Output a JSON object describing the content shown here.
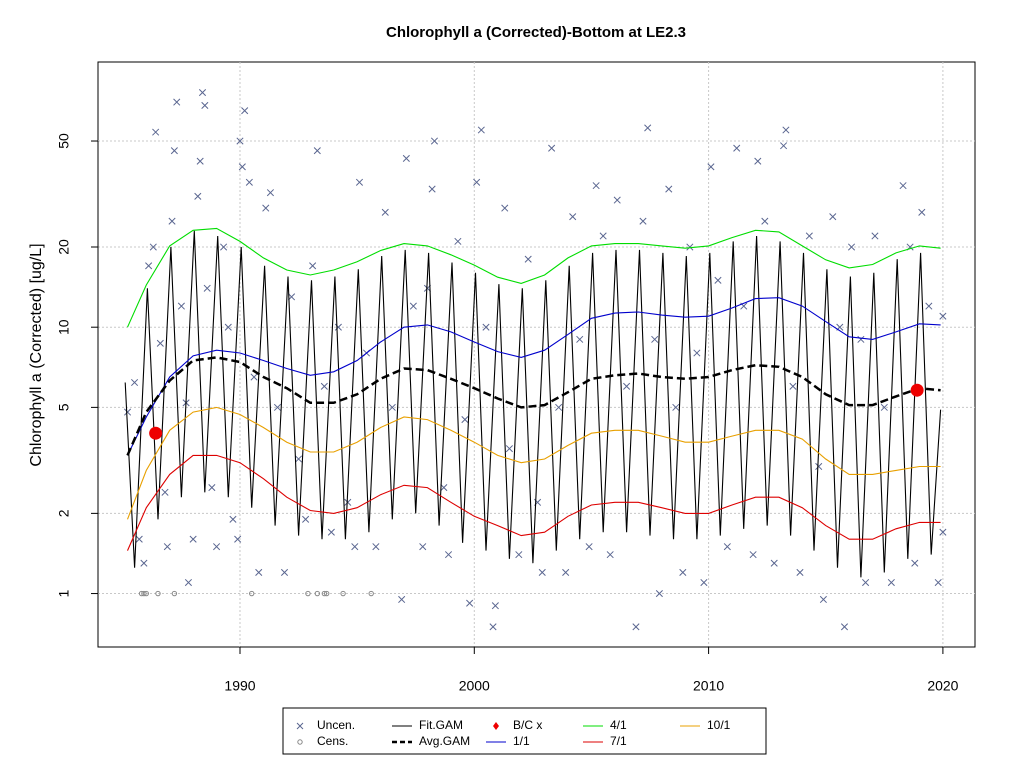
{
  "chart_data": {
    "type": "scatter-line",
    "title": "Chlorophyll a (Corrected)-Bottom at LE2.3",
    "y_label": "Chlorophyll a (Corrected) [ug/L]",
    "log_y": true,
    "grid": true,
    "xlim": [
      1983.94,
      2021.37
    ],
    "ylim": [
      0.63,
      99
    ],
    "xticks": [
      1990,
      2000,
      2010,
      2020
    ],
    "yticks": [
      1,
      2,
      5,
      10,
      20,
      50
    ],
    "legend": "bottom",
    "series": [
      {
        "name": "Uncen.",
        "color": "#5a6690",
        "marker": "x",
        "x": [
          1985.2,
          1985.5,
          1985.7,
          1985.9,
          1986.1,
          1986.3,
          1986.4,
          1986.6,
          1986.8,
          1986.9,
          1987.1,
          1987.2,
          1987.3,
          1987.5,
          1987.7,
          1987.8,
          1988.0,
          1988.2,
          1988.3,
          1988.4,
          1988.5,
          1988.6,
          1988.8,
          1989.0,
          1989.3,
          1989.5,
          1989.7,
          1989.9,
          1990.0,
          1990.1,
          1990.2,
          1990.4,
          1990.6,
          1990.8,
          1991.1,
          1991.3,
          1991.6,
          1991.9,
          1992.2,
          1992.5,
          1992.8,
          1993.1,
          1993.3,
          1993.6,
          1993.9,
          1994.2,
          1994.6,
          1994.9,
          1995.1,
          1995.4,
          1995.8,
          1996.2,
          1996.5,
          1996.9,
          1997.1,
          1997.4,
          1997.8,
          1998.0,
          1998.3,
          1998.2,
          1998.7,
          1998.9,
          1999.3,
          1999.6,
          1999.8,
          2000.1,
          2000.3,
          2000.5,
          2000.8,
          2000.9,
          2001.3,
          2001.5,
          2001.9,
          2002.3,
          2002.7,
          2002.9,
          2003.3,
          2003.6,
          2003.9,
          2004.2,
          2004.5,
          2004.9,
          2005.2,
          2005.5,
          2005.8,
          2006.1,
          2006.5,
          2006.9,
          2007.2,
          2007.4,
          2007.7,
          2007.9,
          2008.3,
          2008.6,
          2008.9,
          2009.2,
          2009.5,
          2009.8,
          2010.1,
          2010.4,
          2010.8,
          2011.2,
          2011.5,
          2011.9,
          2012.1,
          2012.4,
          2012.8,
          2013.2,
          2013.3,
          2013.6,
          2013.9,
          2014.3,
          2014.7,
          2014.9,
          2015.3,
          2015.6,
          2015.8,
          2016.1,
          2016.5,
          2016.7,
          2017.1,
          2017.5,
          2017.8,
          2018.3,
          2018.6,
          2018.8,
          2019.1,
          2019.4,
          2019.8,
          2020.0,
          2020.0
        ],
        "values": [
          4.8,
          6.2,
          1.6,
          1.3,
          17,
          20,
          54,
          8.7,
          2.4,
          1.5,
          25,
          46,
          70,
          12,
          5.2,
          1.1,
          1.6,
          31,
          42,
          76,
          68,
          14,
          2.5,
          1.5,
          20,
          10,
          1.9,
          1.6,
          50,
          40,
          65,
          35,
          6.5,
          1.2,
          28,
          32,
          5,
          1.2,
          13,
          3.2,
          1.9,
          17,
          46,
          6,
          1.7,
          10,
          2.2,
          1.5,
          35,
          8,
          1.5,
          27,
          5,
          0.95,
          43,
          12,
          1.5,
          14,
          50,
          33,
          2.5,
          1.4,
          21,
          4.5,
          0.92,
          35,
          55,
          10,
          0.75,
          0.9,
          28,
          3.5,
          1.4,
          18,
          2.2,
          1.2,
          47,
          5,
          1.2,
          26,
          9,
          1.5,
          34,
          22,
          1.4,
          30,
          6,
          0.75,
          25,
          56,
          9,
          1.0,
          33,
          5,
          1.2,
          20,
          8,
          1.1,
          40,
          15,
          1.5,
          47,
          12,
          1.4,
          42,
          25,
          1.3,
          48,
          55,
          6,
          1.2,
          22,
          3,
          0.95,
          26,
          10,
          0.75,
          20,
          9,
          1.1,
          22,
          5,
          1.1,
          34,
          20,
          1.3,
          27,
          12,
          1.1,
          11,
          1.7
        ]
      },
      {
        "name": "Cens.",
        "color": "#888888",
        "marker": "o",
        "x": [
          1985.8,
          1985.9,
          1986.0,
          1986.5,
          1987.2,
          1990.5,
          1992.9,
          1993.3,
          1993.6,
          1993.7,
          1994.4,
          1995.6
        ],
        "values": [
          1,
          1,
          1,
          1,
          1,
          1,
          1,
          1,
          1,
          1,
          1,
          1
        ]
      },
      {
        "name": "Fit.GAM",
        "color": "#000000",
        "marker": "line",
        "x": [
          1985.1,
          1985.5,
          1986.05,
          1986.5,
          1987.05,
          1987.5,
          1988.05,
          1988.5,
          1989.05,
          1989.5,
          1990.05,
          1990.5,
          1991.05,
          1991.5,
          1992.05,
          1992.5,
          1993.05,
          1993.5,
          1994.05,
          1994.5,
          1995.05,
          1995.5,
          1996.05,
          1996.5,
          1997.05,
          1997.5,
          1998.05,
          1998.5,
          1999.05,
          1999.5,
          2000.05,
          2000.5,
          2001.05,
          2001.5,
          2002.05,
          2002.5,
          2003.05,
          2003.5,
          2004.05,
          2004.5,
          2005.05,
          2005.5,
          2006.05,
          2006.5,
          2007.05,
          2007.5,
          2008.05,
          2008.5,
          2009.05,
          2009.5,
          2010.05,
          2010.5,
          2011.05,
          2011.5,
          2012.05,
          2012.5,
          2013.05,
          2013.5,
          2014.05,
          2014.5,
          2015.05,
          2015.5,
          2016.05,
          2016.5,
          2017.05,
          2017.5,
          2018.05,
          2018.5,
          2019.05,
          2019.5,
          2019.9
        ],
        "values": [
          6.2,
          1.25,
          14,
          1.9,
          20,
          2.3,
          23,
          2.4,
          22,
          2.3,
          20,
          2.1,
          17,
          1.8,
          15.5,
          1.65,
          15,
          1.6,
          15.5,
          1.6,
          16.5,
          1.7,
          18.5,
          1.9,
          19.5,
          2.0,
          19,
          1.8,
          17.5,
          1.55,
          16,
          1.45,
          14.5,
          1.35,
          14,
          1.3,
          15,
          1.45,
          17,
          1.6,
          19,
          1.7,
          19.5,
          1.7,
          19.5,
          1.65,
          19,
          1.6,
          18.5,
          1.6,
          19,
          1.65,
          21,
          1.75,
          22,
          1.8,
          21,
          1.65,
          19,
          1.45,
          16.5,
          1.25,
          15.5,
          1.15,
          16,
          1.2,
          18,
          1.35,
          19,
          1.4,
          4.9
        ]
      },
      {
        "name": "Avg.GAM",
        "color": "#000000",
        "marker": "dashed",
        "x": [
          1985.2,
          1986,
          1987,
          1988,
          1989,
          1990,
          1991,
          1992,
          1993,
          1994,
          1995,
          1996,
          1997,
          1998,
          1999,
          2000,
          2001,
          2002,
          2003,
          2004,
          2005,
          2006,
          2007,
          2008,
          2009,
          2010,
          2011,
          2012,
          2013,
          2014,
          2015,
          2016,
          2017,
          2018,
          2019,
          2019.9
        ],
        "values": [
          3.3,
          4.8,
          6.3,
          7.5,
          7.7,
          7.4,
          6.5,
          5.9,
          5.2,
          5.2,
          5.6,
          6.4,
          7.0,
          6.9,
          6.4,
          5.9,
          5.4,
          5.0,
          5.1,
          5.7,
          6.4,
          6.6,
          6.7,
          6.5,
          6.4,
          6.5,
          6.9,
          7.2,
          7.1,
          6.5,
          5.6,
          5.1,
          5.1,
          5.5,
          5.9,
          5.8
        ]
      },
      {
        "name": "B/C x",
        "color": "#ee0000",
        "marker": "dot",
        "x": [
          1986.4,
          2018.9
        ],
        "values": [
          4.0,
          5.8
        ]
      },
      {
        "name": "1/1",
        "color": "#0000cc",
        "marker": "line",
        "x": [
          1985.2,
          1986,
          1987,
          1988,
          1989,
          1990,
          1991,
          1992,
          1993,
          1994,
          1995,
          1996,
          1997,
          1998,
          1999,
          2000,
          2001,
          2002,
          2003,
          2004,
          2005,
          2006,
          2007,
          2008,
          2009,
          2010,
          2011,
          2012,
          2013,
          2014,
          2015,
          2016,
          2017,
          2018,
          2019,
          2019.9
        ],
        "values": [
          3.3,
          4.6,
          6.5,
          7.8,
          8.2,
          8.0,
          7.5,
          7.0,
          6.6,
          6.8,
          7.5,
          8.8,
          10.0,
          10.2,
          9.6,
          8.8,
          8.1,
          7.7,
          8.2,
          9.4,
          10.8,
          11.3,
          11.4,
          11.1,
          10.9,
          11.0,
          11.8,
          12.8,
          12.9,
          12.0,
          10.5,
          9.2,
          9.0,
          9.6,
          10.3,
          10.2
        ]
      },
      {
        "name": "4/1",
        "color": "#00dd00",
        "marker": "line",
        "x": [
          1985.2,
          1986,
          1987,
          1988,
          1989,
          1990,
          1991,
          1992,
          1993,
          1994,
          1995,
          1996,
          1997,
          1998,
          1999,
          2000,
          2001,
          2002,
          2003,
          2004,
          2005,
          2006,
          2007,
          2008,
          2009,
          2010,
          2011,
          2012,
          2013,
          2014,
          2015,
          2016,
          2017,
          2018,
          2019,
          2019.9
        ],
        "values": [
          10,
          14.4,
          20.2,
          23.1,
          23.5,
          21,
          18.2,
          16.4,
          15.7,
          16.4,
          17.6,
          19.4,
          20.6,
          20.2,
          18.7,
          17.1,
          15.4,
          14.6,
          15.7,
          18.2,
          20.2,
          20.6,
          20.6,
          20.2,
          19.8,
          20.2,
          21.7,
          23.1,
          22.8,
          20.2,
          17.9,
          16.7,
          17.2,
          19.0,
          20.2,
          19.8
        ]
      },
      {
        "name": "7/1",
        "color": "#dd0000",
        "marker": "line",
        "x": [
          1985.2,
          1986,
          1987,
          1988,
          1989,
          1990,
          1991,
          1992,
          1993,
          1994,
          1995,
          1996,
          1997,
          1998,
          1999,
          2000,
          2001,
          2002,
          2003,
          2004,
          2005,
          2006,
          2007,
          2008,
          2009,
          2010,
          2011,
          2012,
          2013,
          2014,
          2015,
          2016,
          2017,
          2018,
          2019,
          2019.9
        ],
        "values": [
          1.45,
          2.1,
          2.8,
          3.3,
          3.3,
          3.1,
          2.7,
          2.3,
          2.05,
          2.0,
          2.1,
          2.35,
          2.55,
          2.5,
          2.2,
          1.95,
          1.8,
          1.65,
          1.7,
          1.95,
          2.15,
          2.2,
          2.2,
          2.1,
          2.0,
          2.0,
          2.15,
          2.3,
          2.3,
          2.1,
          1.8,
          1.6,
          1.6,
          1.75,
          1.85,
          1.85
        ]
      },
      {
        "name": "10/1",
        "color": "#e8a000",
        "marker": "line",
        "x": [
          1985.2,
          1986,
          1987,
          1988,
          1989,
          1990,
          1991,
          1992,
          1993,
          1994,
          1995,
          1996,
          1997,
          1998,
          1999,
          2000,
          2001,
          2002,
          2003,
          2004,
          2005,
          2006,
          2007,
          2008,
          2009,
          2010,
          2011,
          2012,
          2013,
          2014,
          2015,
          2016,
          2017,
          2018,
          2019,
          2019.9
        ],
        "values": [
          1.9,
          2.9,
          4.1,
          4.8,
          5.0,
          4.7,
          4.2,
          3.7,
          3.4,
          3.4,
          3.7,
          4.2,
          4.6,
          4.5,
          4.1,
          3.7,
          3.3,
          3.1,
          3.2,
          3.6,
          4.0,
          4.1,
          4.1,
          3.9,
          3.7,
          3.7,
          3.9,
          4.1,
          4.1,
          3.8,
          3.2,
          2.8,
          2.8,
          2.9,
          3.0,
          3.0
        ]
      }
    ]
  }
}
